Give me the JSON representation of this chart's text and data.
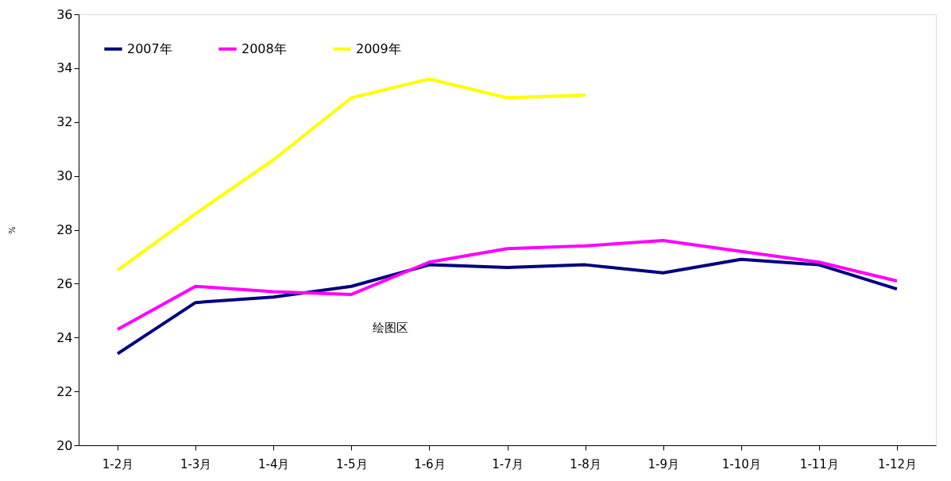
{
  "chart_data": {
    "type": "line",
    "ylabel": "%",
    "categories": [
      "1-2月",
      "1-3月",
      "1-4月",
      "1-5月",
      "1-6月",
      "1-7月",
      "1-8月",
      "1-9月",
      "1-10月",
      "1-11月",
      "1-12月"
    ],
    "series": [
      {
        "name": "2007年",
        "color": "#000080",
        "values": [
          23.4,
          25.3,
          25.5,
          25.9,
          26.7,
          26.6,
          26.7,
          26.4,
          26.9,
          26.7,
          25.8
        ]
      },
      {
        "name": "2008年",
        "color": "#ff00ff",
        "values": [
          24.3,
          25.9,
          25.7,
          25.6,
          26.8,
          27.3,
          27.4,
          27.6,
          27.2,
          26.8,
          26.1
        ]
      },
      {
        "name": "2009年",
        "color": "#ffff00",
        "values": [
          26.5,
          28.6,
          30.6,
          32.9,
          33.6,
          32.9,
          33.0,
          null,
          null,
          null,
          null
        ]
      }
    ],
    "ylim": [
      20,
      36
    ],
    "yticks": [
      20,
      22,
      24,
      26,
      28,
      30,
      32,
      34,
      36
    ],
    "grid": false,
    "legend": "top left",
    "marker": "none",
    "line_style": "solid",
    "annotations": [
      "绘图区"
    ]
  }
}
